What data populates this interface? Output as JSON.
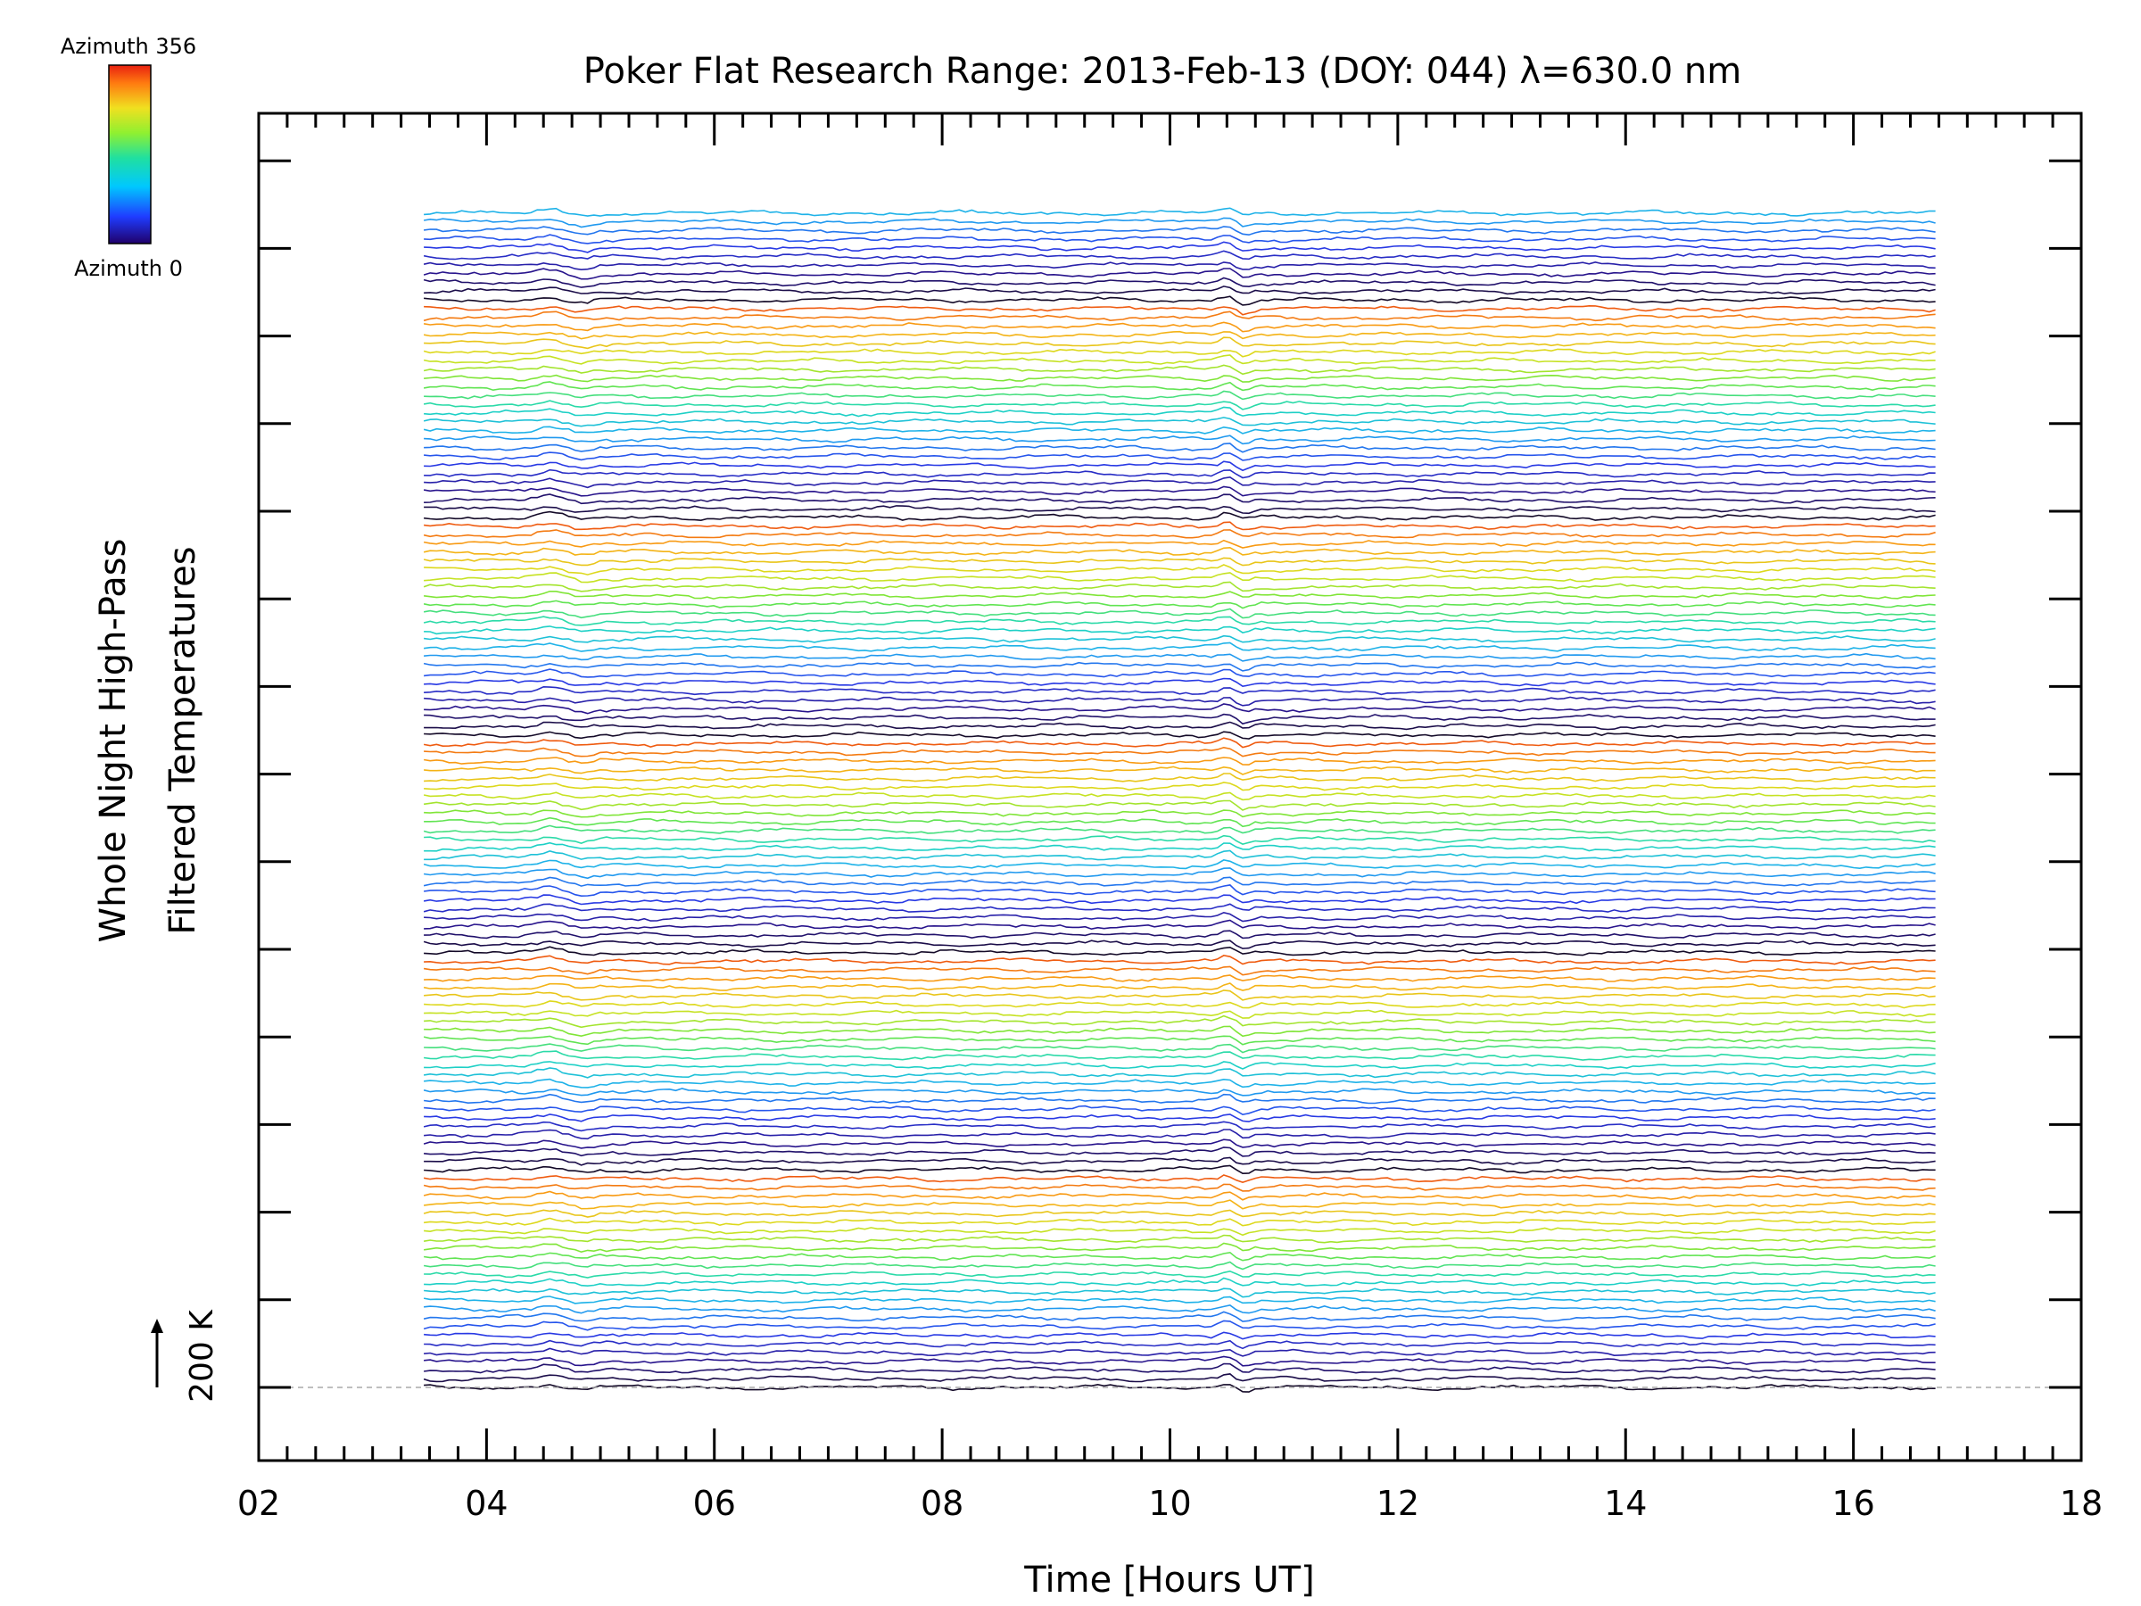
{
  "chart_data": {
    "type": "line",
    "title": "Poker Flat Research Range: 2013-Feb-13 (DOY: 044) λ=630.0 nm",
    "xlabel": "Time [Hours UT]",
    "ylabel_lines": [
      "Whole Night High-Pass",
      "Filtered Temperatures"
    ],
    "xlim": [
      2,
      18
    ],
    "x_tick_labels": [
      "02",
      "04",
      "06",
      "08",
      "10",
      "12",
      "14",
      "16",
      "18"
    ],
    "x_data_range": [
      3.45,
      16.72
    ],
    "trace_count": 136,
    "trace_offset_K": 20,
    "scale_bar": {
      "label": "200 K",
      "value_K": 200
    },
    "colorbar": {
      "top_label": "Azimuth 356",
      "bottom_label": "Azimuth 0",
      "min": 0,
      "max": 356,
      "colormap": "rainbow"
    },
    "baseline": {
      "style": "dashed",
      "color": "#aaaaaa"
    },
    "grid": false,
    "legend": "none"
  }
}
